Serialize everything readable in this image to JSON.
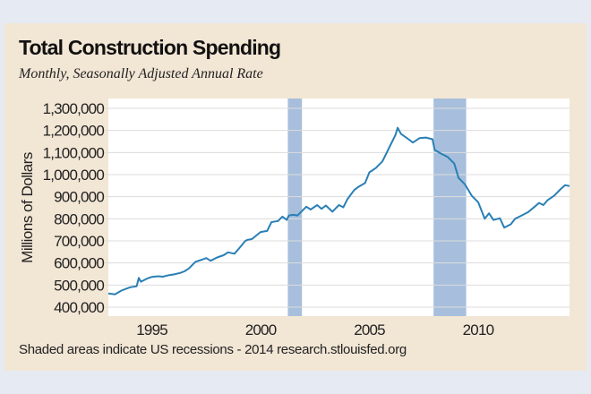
{
  "colors": {
    "line": "#2a7fb5",
    "recession": "#a7bfdc",
    "grid": "#dcdcdc",
    "plot_bg": "#ffffff",
    "card_bg": "#f2e6d5"
  },
  "chart_data": {
    "type": "line",
    "title": "Total Construction Spending",
    "subtitle": "Monthly, Seasonally Adjusted Annual Rate",
    "ylabel": "Millions of Dollars",
    "xlabel": "",
    "note": "Shaded areas indicate US recessions - 2014 research.stlouisfed.org",
    "xlim": [
      1993.0,
      2014.2
    ],
    "ylim": [
      360000,
      1340000
    ],
    "grid": true,
    "yticks": [
      400000,
      500000,
      600000,
      700000,
      800000,
      900000,
      1000000,
      1100000,
      1200000,
      1300000
    ],
    "ytick_labels": [
      "400,000",
      "500,000",
      "600,000",
      "700,000",
      "800,000",
      "900,000",
      "1,000,000",
      "1,100,000",
      "1,200,000",
      "1,300,000"
    ],
    "xticks": [
      1995,
      2000,
      2005,
      2010
    ],
    "xtick_labels": [
      "1995",
      "2000",
      "2005",
      "2010"
    ],
    "recessions": [
      [
        2001.25,
        2001.9
      ],
      [
        2007.95,
        2009.45
      ]
    ],
    "series": [
      {
        "x": [
          1993.0,
          1993.3,
          1993.6,
          1994.0,
          1994.3,
          1994.4,
          1994.5,
          1994.8,
          1995.0,
          1995.3,
          1995.5,
          1995.8,
          1996.0,
          1996.3,
          1996.5,
          1996.7,
          1997.0,
          1997.3,
          1997.5,
          1997.7,
          1998.0,
          1998.3,
          1998.5,
          1998.8,
          1999.0,
          1999.3,
          1999.4,
          1999.6,
          2000.0,
          2000.3,
          2000.5,
          2000.8,
          2001.0,
          2001.2,
          2001.3,
          2001.5,
          2001.7,
          2001.9,
          2002.1,
          2002.3,
          2002.6,
          2002.8,
          2003.0,
          2003.3,
          2003.6,
          2003.8,
          2004.0,
          2004.3,
          2004.5,
          2004.8,
          2005.0,
          2005.3,
          2005.6,
          2006.0,
          2006.2,
          2006.3,
          2006.45,
          2006.8,
          2007.0,
          2007.3,
          2007.6,
          2007.9,
          2008.0,
          2008.3,
          2008.6,
          2008.9,
          2009.1,
          2009.4,
          2009.7,
          2010.0,
          2010.3,
          2010.5,
          2010.7,
          2011.0,
          2011.2,
          2011.5,
          2011.7,
          2012.0,
          2012.3,
          2012.6,
          2012.8,
          2013.0,
          2013.2,
          2013.5,
          2013.8,
          2014.0,
          2014.2
        ],
        "values": [
          462000,
          458000,
          475000,
          490000,
          495000,
          532000,
          515000,
          530000,
          537000,
          540000,
          538000,
          545000,
          548000,
          555000,
          562000,
          575000,
          605000,
          615000,
          622000,
          610000,
          625000,
          635000,
          648000,
          642000,
          665000,
          700000,
          705000,
          708000,
          740000,
          745000,
          785000,
          790000,
          810000,
          795000,
          815000,
          818000,
          815000,
          835000,
          855000,
          842000,
          862000,
          845000,
          860000,
          832000,
          862000,
          852000,
          890000,
          930000,
          945000,
          962000,
          1010000,
          1030000,
          1060000,
          1140000,
          1180000,
          1212000,
          1185000,
          1160000,
          1145000,
          1165000,
          1168000,
          1160000,
          1112000,
          1095000,
          1080000,
          1050000,
          985000,
          955000,
          905000,
          875000,
          800000,
          825000,
          795000,
          802000,
          760000,
          775000,
          800000,
          815000,
          830000,
          855000,
          872000,
          862000,
          885000,
          905000,
          935000,
          952000,
          948000
        ]
      }
    ]
  }
}
